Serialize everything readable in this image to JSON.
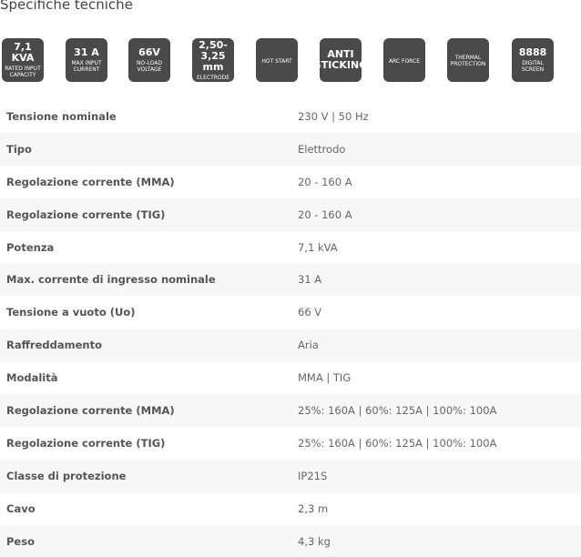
{
  "header": {
    "title": "Specifiche tecniche"
  },
  "icons": [
    {
      "main": "7,1 KVA",
      "caption": "RATED INPUT CAPACITY"
    },
    {
      "main": "31 A",
      "caption": "MAX INPUT CURRENT"
    },
    {
      "main": "66V",
      "caption": "NO-LOAD VOLTAGE"
    },
    {
      "main": "2,50-3,25 mm",
      "caption": "ELECTRODE"
    },
    {
      "main": "",
      "caption": "HOT START"
    },
    {
      "main": "ANTI STICKING",
      "caption": ""
    },
    {
      "main": "",
      "caption": "ARC FORCE"
    },
    {
      "main": "",
      "caption": "THERMAL PROTECTION"
    },
    {
      "main": "8888",
      "caption": "DIGITAL SCREEN"
    }
  ],
  "table": {
    "rows": [
      [
        "Tensione nominale",
        "230 V | 50 Hz"
      ],
      [
        "Tipo",
        "Elettrodo"
      ],
      [
        "Regolazione corrente (MMA)",
        "20 - 160 A"
      ],
      [
        "Regolazione corrente (TIG)",
        "20 - 160 A"
      ],
      [
        "Potenza",
        "7,1 kVA"
      ],
      [
        "Max. corrente di ingresso nominale",
        "31 A"
      ],
      [
        "Tensione a vuoto (Uo)",
        "66 V"
      ],
      [
        "Raffreddamento",
        "Aria"
      ],
      [
        "Modalità",
        "MMA | TIG"
      ],
      [
        "Regolazione corrente (MMA)",
        "25%: 160A | 60%: 125A | 100%: 100A"
      ],
      [
        "Regolazione corrente (TIG)",
        "25%: 160A | 60%: 125A | 100%: 100A"
      ],
      [
        "Classe di protezione",
        "IP21S"
      ],
      [
        "Cavo",
        "2,3 m"
      ],
      [
        "Peso",
        "4,3 kg"
      ]
    ]
  }
}
